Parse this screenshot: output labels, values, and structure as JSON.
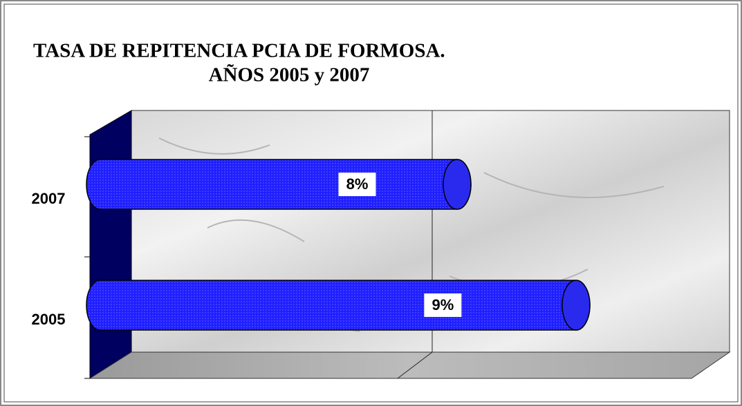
{
  "chart_data": {
    "type": "bar",
    "orientation": "horizontal",
    "title": [
      "TASA DE REPITENCIA PCIA DE FORMOSA.",
      "AÑOS 2005 y 2007"
    ],
    "categories": [
      "2007",
      "2005"
    ],
    "values": [
      8,
      9
    ],
    "value_labels": [
      "8%",
      "9%"
    ],
    "color": "#1f1fff",
    "xlim": [
      5,
      10
    ]
  }
}
